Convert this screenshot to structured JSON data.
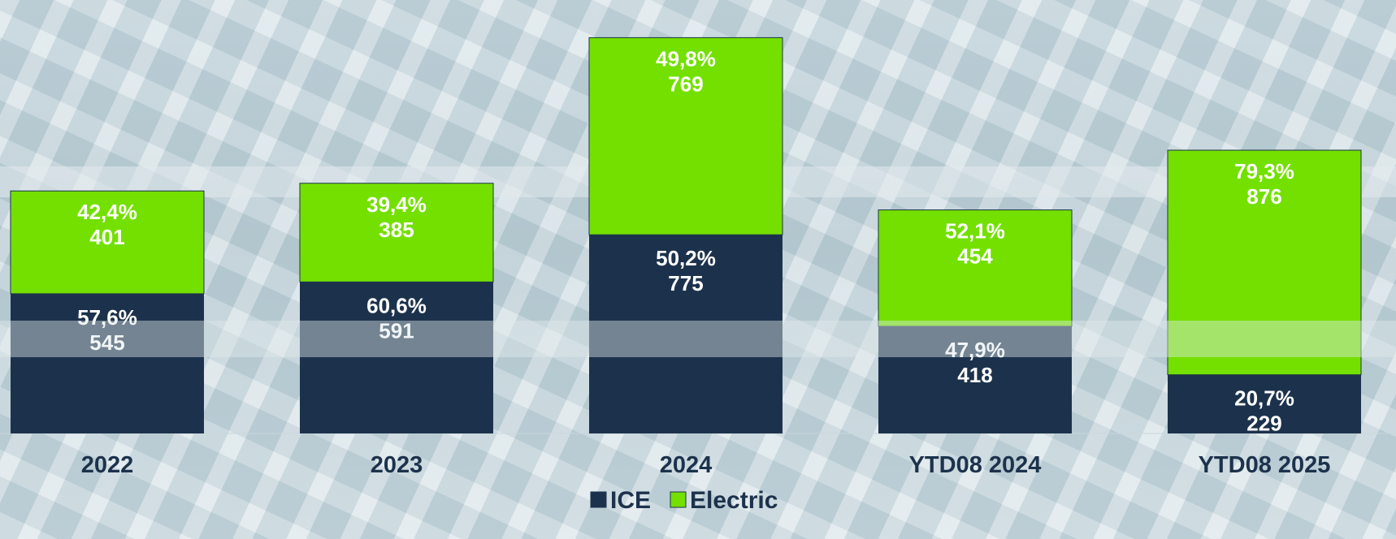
{
  "chart_data": {
    "type": "bar",
    "stacked": true,
    "categories": [
      "2022",
      "2023",
      "2024",
      "YTD08 2024",
      "YTD08 2025"
    ],
    "series": [
      {
        "name": "ICE",
        "color": "#1c324c",
        "values": [
          545,
          591,
          775,
          418,
          229
        ],
        "percent_labels": [
          "57,6%",
          "60,6%",
          "50,2%",
          "47,9%",
          "20,7%"
        ]
      },
      {
        "name": "Electric",
        "color": "#73e000",
        "values": [
          401,
          385,
          769,
          454,
          876
        ],
        "percent_labels": [
          "42,4%",
          "39,4%",
          "49,8%",
          "52,1%",
          "79,3%"
        ]
      }
    ],
    "legend": "bottom-center",
    "grid": false,
    "ylim": [
      0,
      1580
    ]
  }
}
